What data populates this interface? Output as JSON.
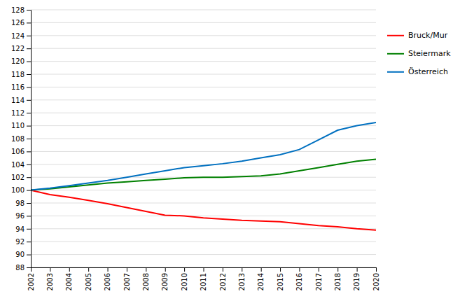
{
  "chart_data": {
    "type": "line",
    "x": [
      2002,
      2003,
      2004,
      2005,
      2006,
      2007,
      2008,
      2009,
      2010,
      2011,
      2012,
      2013,
      2014,
      2015,
      2016,
      2017,
      2018,
      2019,
      2020
    ],
    "xlim": [
      2002,
      2020
    ],
    "xticks": [
      2002,
      2003,
      2004,
      2005,
      2006,
      2007,
      2008,
      2009,
      2010,
      2011,
      2012,
      2013,
      2014,
      2015,
      2016,
      2017,
      2018,
      2019,
      2020
    ],
    "ylim": [
      88,
      128
    ],
    "yticks": [
      88,
      90,
      92,
      94,
      96,
      98,
      100,
      102,
      104,
      106,
      108,
      110,
      112,
      114,
      116,
      118,
      120,
      122,
      124,
      126,
      128
    ],
    "grid": true,
    "legend": "right",
    "series": [
      {
        "name": "Bruck/Mur",
        "color": "#ff0000",
        "values": [
          100.0,
          99.3,
          98.9,
          98.4,
          97.9,
          97.3,
          96.7,
          96.1,
          96.0,
          95.7,
          95.5,
          95.3,
          95.2,
          95.1,
          94.8,
          94.5,
          94.3,
          94.0,
          93.8
        ]
      },
      {
        "name": "Steiermark",
        "color": "#008000",
        "values": [
          100.0,
          100.2,
          100.5,
          100.8,
          101.1,
          101.3,
          101.5,
          101.7,
          101.9,
          102.0,
          102.0,
          102.1,
          102.2,
          102.5,
          103.0,
          103.5,
          104.0,
          104.5,
          104.8
        ]
      },
      {
        "name": "Österreich",
        "color": "#0070c0",
        "values": [
          100.0,
          100.3,
          100.7,
          101.1,
          101.5,
          102.0,
          102.5,
          103.0,
          103.5,
          103.8,
          104.1,
          104.5,
          105.0,
          105.5,
          106.3,
          107.8,
          109.3,
          110.0,
          110.5
        ]
      }
    ]
  }
}
